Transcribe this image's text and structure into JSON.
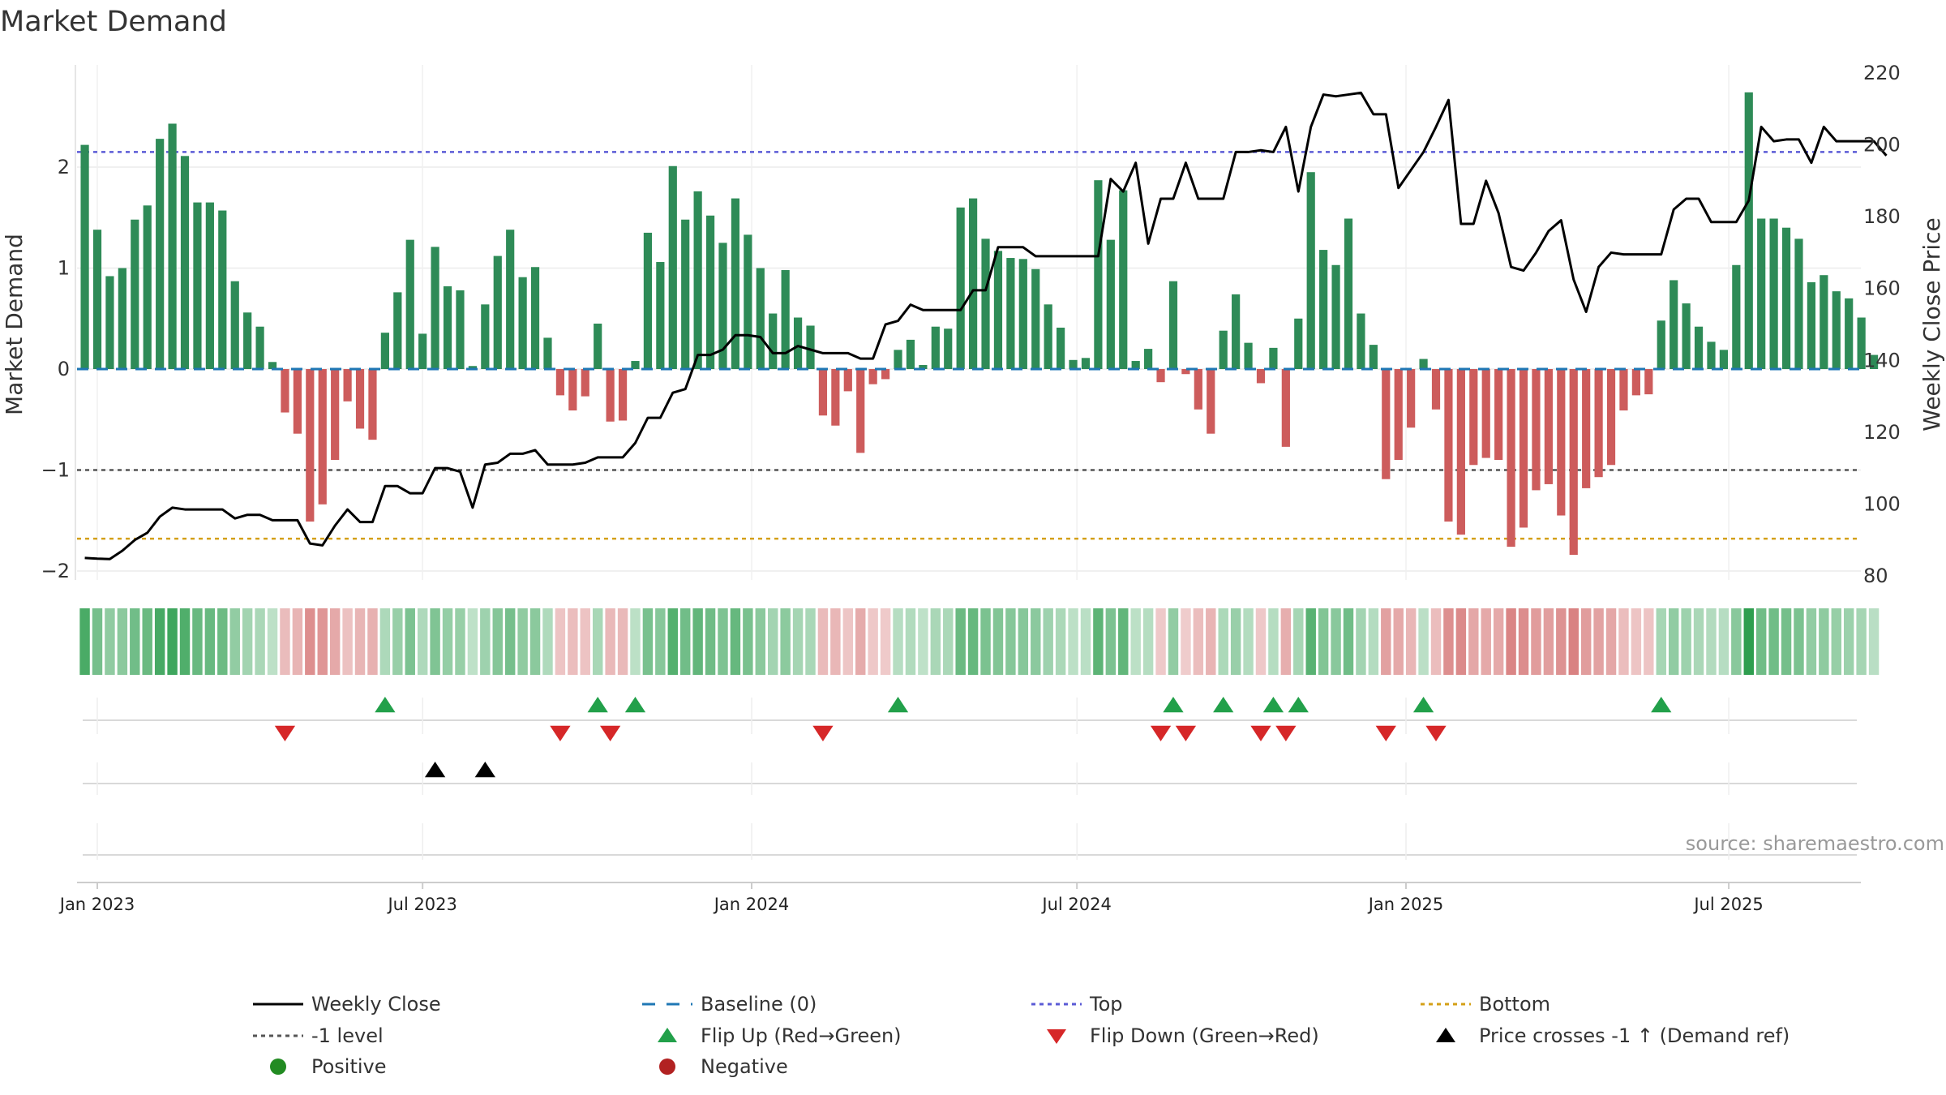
{
  "chart_data": {
    "type": "bar",
    "title": "Market Demand",
    "ylabel": "Market Demand",
    "y2label": "Weekly Close Price",
    "ylim": [
      -2.0,
      2.85
    ],
    "y2lim": [
      80,
      220
    ],
    "yticks": [
      -2,
      -1,
      0,
      1,
      2
    ],
    "ytick_labels": [
      "−2",
      "−1",
      "0",
      "1",
      "2"
    ],
    "y2ticks": [
      80,
      100,
      120,
      140,
      160,
      180,
      200,
      220
    ],
    "y2tick_labels": [
      "80",
      "100",
      "120",
      "140",
      "160",
      "180",
      "200",
      "220"
    ],
    "x_start_week_offset": -1,
    "xticks": [
      {
        "label": "Jan 2023",
        "week": 0
      },
      {
        "label": "Jul 2023",
        "week": 26
      },
      {
        "label": "Jan 2024",
        "week": 52.3
      },
      {
        "label": "Jul 2024",
        "week": 78.3
      },
      {
        "label": "Jan 2025",
        "week": 104.6
      },
      {
        "label": "Jul 2025",
        "week": 130.4
      }
    ],
    "levels": {
      "top": 2.15,
      "minus_one": -1.0,
      "bottom": -1.68,
      "baseline": 0
    },
    "demand": [
      2.22,
      1.38,
      0.92,
      1.0,
      1.48,
      1.62,
      2.28,
      2.43,
      2.11,
      1.65,
      1.65,
      1.57,
      0.87,
      0.56,
      0.42,
      0.07,
      -0.43,
      -0.64,
      -1.51,
      -1.34,
      -0.9,
      -0.32,
      -0.59,
      -0.7,
      0.36,
      0.76,
      1.28,
      0.35,
      1.21,
      0.82,
      0.78,
      0.03,
      0.64,
      1.12,
      1.38,
      0.91,
      1.01,
      0.31,
      -0.26,
      -0.41,
      -0.27,
      0.45,
      -0.52,
      -0.51,
      0.08,
      1.35,
      1.06,
      2.01,
      1.48,
      1.76,
      1.52,
      1.25,
      1.69,
      1.33,
      1.0,
      0.55,
      0.98,
      0.51,
      0.43,
      -0.46,
      -0.56,
      -0.22,
      -0.83,
      -0.15,
      -0.1,
      0.19,
      0.29,
      0.04,
      0.42,
      0.4,
      1.6,
      1.69,
      1.29,
      1.17,
      1.1,
      1.09,
      0.99,
      0.64,
      0.41,
      0.09,
      0.11,
      1.87,
      1.28,
      1.77,
      0.08,
      0.2,
      -0.13,
      0.87,
      -0.05,
      -0.4,
      -0.64,
      0.38,
      0.74,
      0.26,
      -0.14,
      0.21,
      -0.77,
      0.5,
      1.95,
      1.18,
      1.03,
      1.49,
      0.55,
      0.24,
      -1.09,
      -0.9,
      -0.58,
      0.1,
      -0.4,
      -1.51,
      -1.64,
      -0.95,
      -0.88,
      -0.9,
      -1.76,
      -1.57,
      -1.2,
      -1.14,
      -1.45,
      -1.84,
      -1.18,
      -1.07,
      -0.95,
      -0.41,
      -0.26,
      -0.25,
      0.48,
      0.88,
      0.65,
      0.42,
      0.27,
      0.19,
      1.03,
      2.74,
      1.49,
      1.49,
      1.4,
      1.29,
      0.86,
      0.93,
      0.77,
      0.7,
      0.51,
      0.14
    ],
    "price": [
      85,
      84.8,
      84.7,
      87,
      90,
      92,
      96.5,
      99,
      98.5,
      98.5,
      98.5,
      98.5,
      96,
      97,
      97,
      95.5,
      95.5,
      95.5,
      89,
      88.5,
      94,
      98.5,
      95,
      95,
      105,
      105,
      103,
      103,
      110,
      110,
      109,
      99,
      111,
      111.5,
      114,
      114,
      115,
      111,
      111,
      111,
      111.5,
      113,
      113,
      113,
      117,
      124,
      124,
      131,
      132,
      141.5,
      141.5,
      143,
      147,
      147,
      146.5,
      142,
      142,
      144,
      143,
      142,
      142,
      142,
      140.5,
      140.5,
      150,
      151,
      155.5,
      154,
      154,
      154,
      154,
      159.5,
      159.5,
      171.5,
      171.5,
      171.5,
      169,
      169,
      169,
      169,
      169,
      169,
      190.5,
      187,
      195,
      172.5,
      185,
      185,
      195,
      185,
      185,
      185,
      198,
      198,
      198.5,
      198,
      205,
      187,
      205,
      214,
      213.5,
      214,
      214.5,
      208.5,
      208.5,
      188,
      193,
      198,
      205,
      212.5,
      178,
      178,
      190,
      181,
      166,
      165,
      170,
      176,
      179,
      162.5,
      153.5,
      166,
      170,
      169.5,
      169.5,
      169.5,
      169.5,
      182,
      185,
      185,
      178.5,
      178.5,
      178.5,
      184.5,
      205,
      201,
      201.5,
      201.5,
      195,
      205,
      201,
      201,
      201,
      201,
      197
    ],
    "signals": {
      "flip_up_weeks": [
        23,
        40,
        43,
        64,
        86,
        90,
        94,
        96,
        106,
        125
      ],
      "flip_down_weeks": [
        15,
        37,
        41,
        58,
        85,
        87,
        93,
        95,
        103,
        107
      ],
      "price_cross_weeks": [
        27,
        31
      ]
    },
    "legend": [
      {
        "label": "Weekly Close",
        "marker": "solid-line",
        "color": "#000000"
      },
      {
        "label": "Baseline (0)",
        "marker": "dashed-line",
        "color": "#1f77b4"
      },
      {
        "label": "Top",
        "marker": "dotted-line",
        "color": "#5b5bd6"
      },
      {
        "label": "Bottom",
        "marker": "dotted-line",
        "color": "#d4a017"
      },
      {
        "label": "-1 level",
        "marker": "dotted-line",
        "color": "#555555"
      },
      {
        "label": "Flip Up (Red→Green)",
        "marker": "triangle-up",
        "color": "#22a04a"
      },
      {
        "label": "Flip Down (Green→Red)",
        "marker": "triangle-down",
        "color": "#d62728"
      },
      {
        "label": "Price crosses -1 ↑ (Demand ref)",
        "marker": "triangle-up",
        "color": "#000000"
      },
      {
        "label": "Positive",
        "marker": "circle",
        "color": "#228b22"
      },
      {
        "label": "Negative",
        "marker": "circle",
        "color": "#b22222"
      }
    ],
    "colors": {
      "positive_bar": "#2e8b57",
      "negative_bar": "#cd5c5c",
      "price_line": "#000000",
      "baseline": "#1f77b4",
      "top": "#5b5bd6",
      "minus_one": "#555555",
      "bottom": "#d4a017",
      "flip_up": "#22a04a",
      "flip_down": "#d62728",
      "cross": "#000000",
      "strip_positive": "#2e9e4f",
      "strip_negative": "#cd5c5c"
    }
  },
  "source_text": "source: sharemaestro.com"
}
